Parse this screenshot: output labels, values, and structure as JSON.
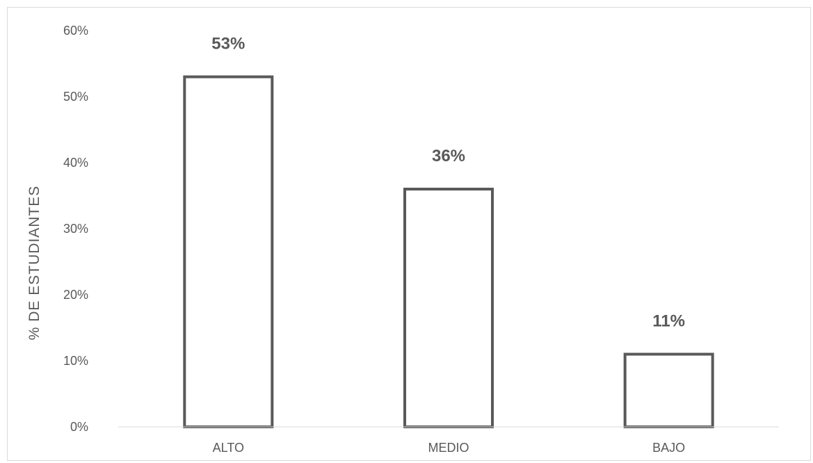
{
  "chart_data": {
    "type": "bar",
    "title": "",
    "xlabel": "",
    "ylabel": "% DE ESTUDIANTES",
    "categories": [
      "ALTO",
      "MEDIO",
      "BAJO"
    ],
    "values": [
      53,
      36,
      11
    ],
    "data_labels": [
      "53%",
      "36%",
      "11%"
    ],
    "y_ticks": [
      {
        "value": 0,
        "label": "0%"
      },
      {
        "value": 10,
        "label": "10%"
      },
      {
        "value": 20,
        "label": "20%"
      },
      {
        "value": 30,
        "label": "30%"
      },
      {
        "value": 40,
        "label": "40%"
      },
      {
        "value": 50,
        "label": "50%"
      },
      {
        "value": 60,
        "label": "60%"
      }
    ],
    "ylim": [
      0,
      60
    ],
    "grid": false,
    "legend": "none",
    "bar_fill": "#ffffff",
    "bar_stroke": "#595959",
    "text_color": "#595959"
  }
}
